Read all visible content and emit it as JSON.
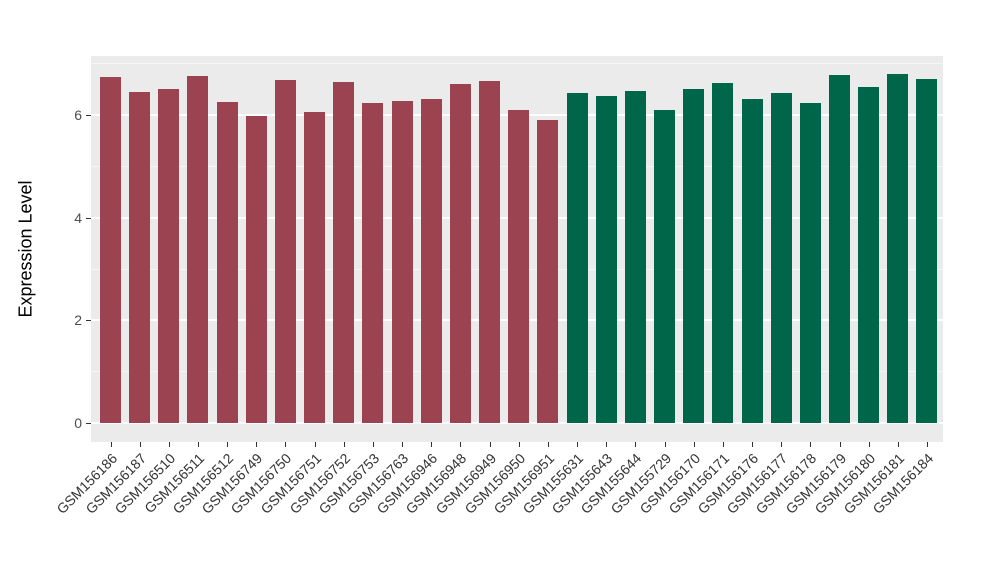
{
  "chart_data": {
    "type": "bar",
    "title": "",
    "xlabel": "",
    "ylabel": "Expression Level",
    "categories": [
      "GSM156186",
      "GSM156187",
      "GSM156510",
      "GSM156511",
      "GSM156512",
      "GSM156749",
      "GSM156750",
      "GSM156751",
      "GSM156752",
      "GSM156753",
      "GSM156763",
      "GSM156946",
      "GSM156948",
      "GSM156949",
      "GSM156950",
      "GSM156951",
      "GSM155631",
      "GSM155643",
      "GSM155644",
      "GSM155729",
      "GSM156170",
      "GSM156171",
      "GSM156176",
      "GSM156177",
      "GSM156178",
      "GSM156179",
      "GSM156180",
      "GSM156181",
      "GSM156184"
    ],
    "values": [
      6.75,
      6.46,
      6.51,
      6.77,
      6.25,
      5.98,
      6.69,
      6.07,
      6.64,
      6.23,
      6.28,
      6.31,
      6.6,
      6.67,
      6.1,
      5.9,
      6.43,
      6.38,
      6.47,
      6.1,
      6.52,
      6.62,
      6.31,
      6.43,
      6.24,
      6.79,
      6.55,
      6.81,
      6.7
    ],
    "bar_groups": [
      "group1",
      "group1",
      "group1",
      "group1",
      "group1",
      "group1",
      "group1",
      "group1",
      "group1",
      "group1",
      "group1",
      "group1",
      "group1",
      "group1",
      "group1",
      "group1",
      "group2",
      "group2",
      "group2",
      "group2",
      "group2",
      "group2",
      "group2",
      "group2",
      "group2",
      "group2",
      "group2",
      "group2",
      "group2"
    ],
    "palette": {
      "group1": "#9C4351",
      "group2": "#006649"
    },
    "yticks": [
      0,
      2,
      4,
      6
    ],
    "yticks_minor": [
      1,
      3,
      5,
      7
    ],
    "ylim": [
      0,
      7.16
    ],
    "grid": true,
    "legend": "none",
    "panel_background": "#EBEBEB",
    "gridline_color": "#FFFFFF",
    "axis_text_color": "#4D4D4D"
  }
}
